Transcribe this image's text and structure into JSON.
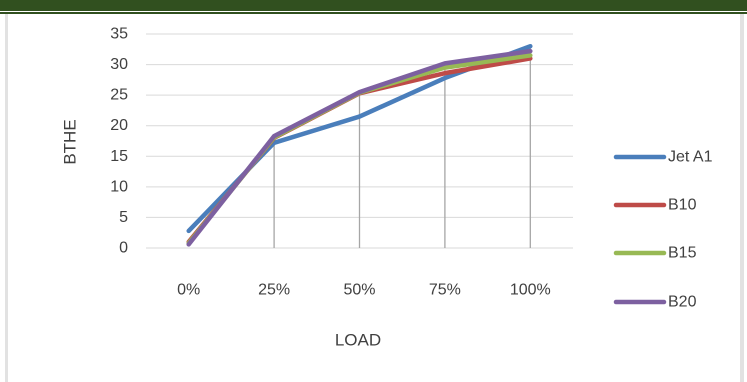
{
  "chart_data": {
    "type": "line",
    "title": "",
    "xlabel": "LOAD",
    "ylabel": "BTHE",
    "categories": [
      "0%",
      "25%",
      "50%",
      "75%",
      "100%"
    ],
    "ylim": [
      0,
      35
    ],
    "yticks": [
      0,
      5,
      10,
      15,
      20,
      25,
      30,
      35
    ],
    "grid": "horizontal",
    "drop_lines": true,
    "legend_position": "right",
    "series": [
      {
        "name": "Jet A1",
        "color": "#4a7ebb",
        "values": [
          2.8,
          17.2,
          21.5,
          27.8,
          33.0
        ]
      },
      {
        "name": "B10",
        "color": "#be4b48",
        "values": [
          1.0,
          18.0,
          25.3,
          28.6,
          31.0
        ]
      },
      {
        "name": "B15",
        "color": "#98b954",
        "values": [
          0.8,
          18.1,
          25.4,
          29.5,
          31.5
        ]
      },
      {
        "name": "B20",
        "color": "#7d60a0",
        "values": [
          0.6,
          18.3,
          25.5,
          30.2,
          32.2
        ]
      }
    ]
  }
}
